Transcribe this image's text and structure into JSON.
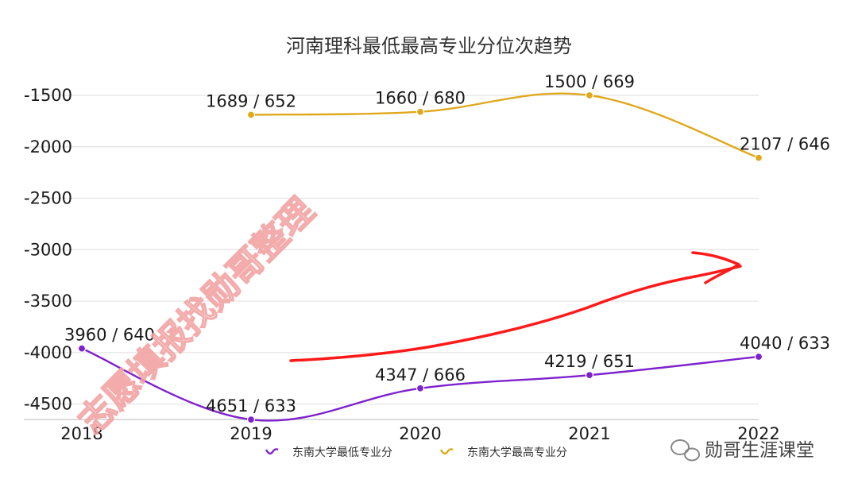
{
  "chart_data": {
    "type": "line",
    "title": "河南理科最低最高专业分位次趋势",
    "xlabel": "",
    "ylabel": "",
    "categories": [
      "2018",
      "2019",
      "2020",
      "2021",
      "2022"
    ],
    "ylim": [
      -4650,
      -1500
    ],
    "yticks": [
      -1500,
      -2000,
      -2500,
      -3000,
      -3500,
      -4000,
      -4500
    ],
    "ytick_labels": [
      "-1500",
      "-2000",
      "-2500",
      "-3000",
      "-3500",
      "-4000",
      "-4500"
    ],
    "grid": true,
    "legend_position": "bottom",
    "series": [
      {
        "name": "东南大学最低专业分",
        "color": "#7e22ce",
        "values": [
          -3960,
          -4651,
          -4347,
          -4219,
          -4040
        ],
        "labels": [
          "3960 / 640",
          "4651 / 633",
          "4347 / 666",
          "4219 / 651",
          "4040 / 633"
        ]
      },
      {
        "name": "东南大学最高专业分",
        "color": "#e0a81c",
        "values": [
          null,
          -1689,
          -1660,
          -1500,
          -2107
        ],
        "labels": [
          null,
          "1689 / 652",
          "1660 / 680",
          "1500 / 669",
          "2107 / 646"
        ]
      }
    ]
  },
  "watermark": {
    "text": "志愿填报找勋哥整理"
  },
  "brand": {
    "text": "勋哥生涯课堂",
    "icon": "wechat-icon"
  },
  "annotation": {
    "color": "#ff1a1a",
    "icon": "hand-drawn-arrow"
  }
}
